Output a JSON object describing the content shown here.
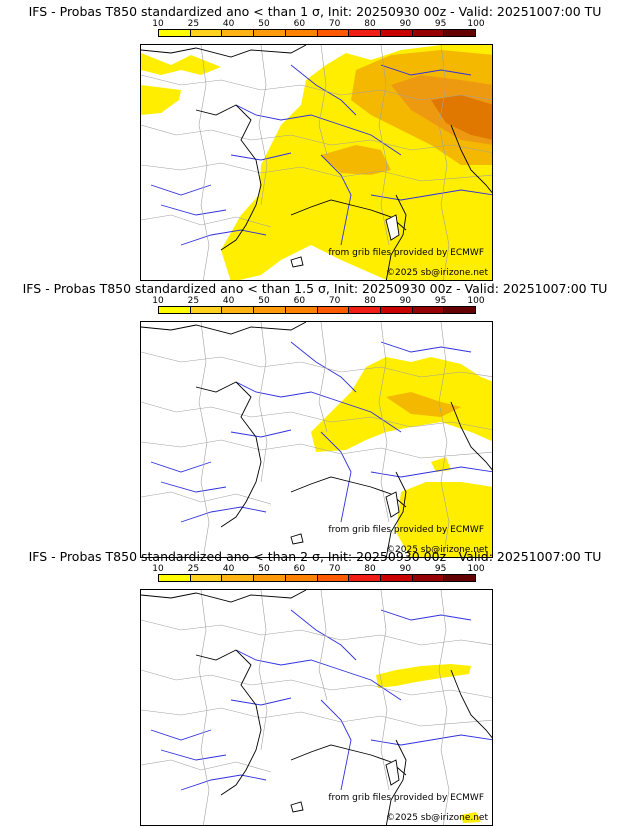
{
  "panels": [
    {
      "title": "IFS - Probas T850  standardized ano < than 1 σ, Init: 20250930 00z - Valid: 20251007:00 TU",
      "sigma": "1"
    },
    {
      "title": "IFS - Probas T850  standardized ano < than 1.5 σ, Init: 20250930 00z - Valid: 20251007:00 TU",
      "sigma": "1.5"
    },
    {
      "title": "IFS - Probas T850  standardized ano < than 2 σ, Init: 20250930 00z - Valid: 20251007:00 TU",
      "sigma": "2"
    }
  ],
  "legend": {
    "ticks": [
      "10",
      "25",
      "40",
      "50",
      "60",
      "70",
      "80",
      "90",
      "95",
      "100"
    ],
    "colors": [
      "#ffff00",
      "#ffd21e",
      "#ffb414",
      "#ff9a0a",
      "#ff8200",
      "#ff5a00",
      "#f01e14",
      "#c80000",
      "#960000",
      "#640000"
    ]
  },
  "credits": {
    "source": "from grib files provided by ECMWF",
    "copyright": "©2025 sb@irizone.net"
  },
  "colors": {
    "land_border": "#a0a0a0",
    "river": "#3030e0",
    "coast": "#000000",
    "prob_low": "#ffee00",
    "prob_mid": "#f5b800",
    "prob_high": "#ee9a10",
    "prob_top": "#e07800"
  }
}
